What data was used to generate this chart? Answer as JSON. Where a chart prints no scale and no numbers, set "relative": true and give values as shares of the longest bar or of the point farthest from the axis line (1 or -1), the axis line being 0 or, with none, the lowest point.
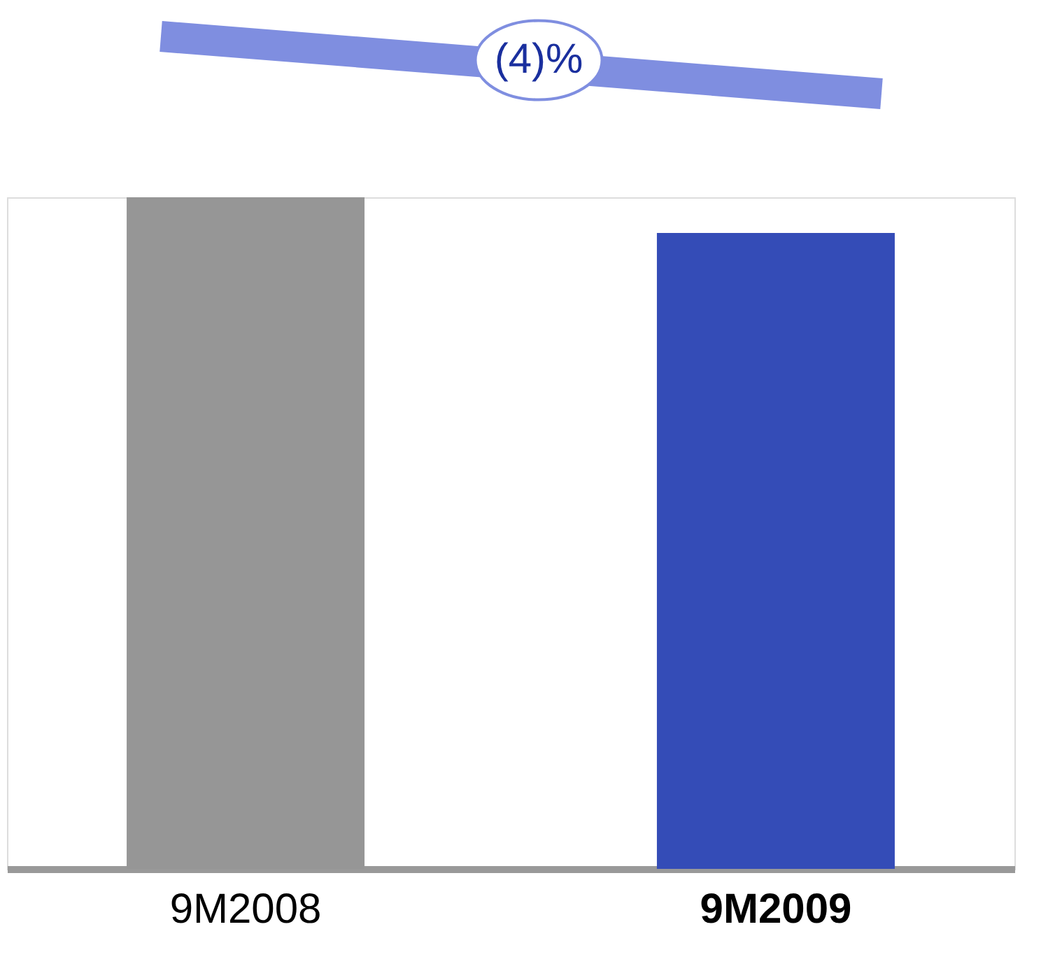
{
  "chart_data": {
    "type": "bar",
    "relative": true,
    "categories": [
      "9M2008",
      "9M2009"
    ],
    "values": [
      1,
      0.947
    ],
    "colors": [
      "#969696",
      "#344cb7"
    ],
    "annotations": [
      "(4)%"
    ]
  }
}
